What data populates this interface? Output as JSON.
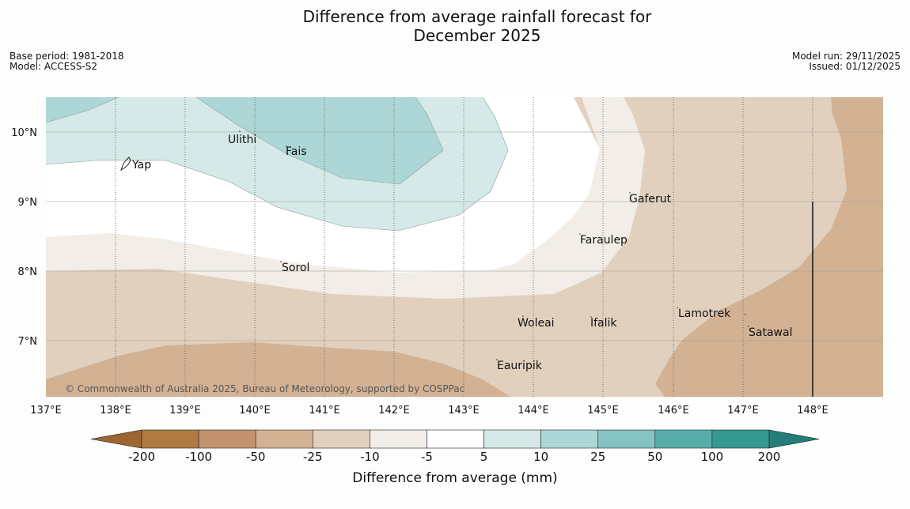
{
  "title_line1": "Difference from average rainfall forecast for",
  "title_line2": "December 2025",
  "meta": {
    "base_period": "Base period: 1981-2018",
    "model": "Model: ACCESS-S2",
    "model_run": "Model run: 29/11/2025",
    "issued": "Issued: 01/12/2025"
  },
  "map": {
    "lon_ticks": [
      "137°E",
      "138°E",
      "139°E",
      "140°E",
      "141°E",
      "142°E",
      "143°E",
      "144°E",
      "145°E",
      "146°E",
      "147°E",
      "148°E"
    ],
    "lat_ticks": [
      "10°N",
      "9°N",
      "8°N",
      "7°N"
    ],
    "places": [
      {
        "name": "Ulithi"
      },
      {
        "name": "Fais"
      },
      {
        "name": "Yap"
      },
      {
        "name": "Gaferut"
      },
      {
        "name": "Faraulep"
      },
      {
        "name": "Sorol"
      },
      {
        "name": "Woleai"
      },
      {
        "name": "Ifalik"
      },
      {
        "name": "Lamotrek"
      },
      {
        "name": "Satawal"
      },
      {
        "name": "Eauripik"
      }
    ],
    "copyright": "© Commonwealth of Australia 2025, Bureau of Meteorology, supported by COSPPac"
  },
  "legend": {
    "ticks": [
      "-200",
      "-100",
      "-50",
      "-25",
      "-10",
      "-5",
      "5",
      "10",
      "25",
      "50",
      "100",
      "200"
    ],
    "colors": [
      "#9c6531",
      "#b07a43",
      "#c39370",
      "#d3b293",
      "#e2d0bf",
      "#f2ede6",
      "#ffffff",
      "#d5e9e8",
      "#add6d6",
      "#84c3c2",
      "#58adab",
      "#35998f",
      "#237e79"
    ],
    "label": "Difference from average (mm)"
  }
}
